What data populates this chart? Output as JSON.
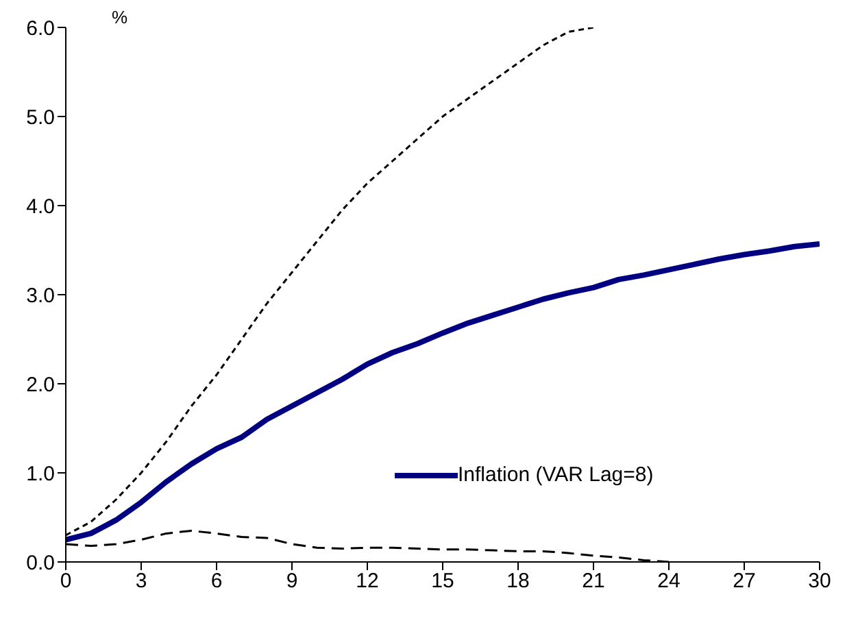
{
  "chart_data": {
    "type": "line",
    "ylabel": "%",
    "x": [
      0,
      1,
      2,
      3,
      4,
      5,
      6,
      7,
      8,
      9,
      10,
      11,
      12,
      13,
      14,
      15,
      16,
      17,
      18,
      19,
      20,
      21,
      22,
      23,
      24,
      25,
      26,
      27,
      28,
      29,
      30
    ],
    "series": [
      {
        "name": "Inflation (VAR Lag=8)",
        "color": "#000080",
        "line_style": "solid",
        "values": [
          0.25,
          0.32,
          0.47,
          0.67,
          0.9,
          1.1,
          1.27,
          1.4,
          1.6,
          1.75,
          1.9,
          2.05,
          2.22,
          2.35,
          2.45,
          2.57,
          2.68,
          2.77,
          2.86,
          2.95,
          3.02,
          3.08,
          3.17,
          3.22,
          3.28,
          3.34,
          3.4,
          3.45,
          3.49,
          3.54,
          3.57
        ]
      },
      {
        "color": "#000000",
        "line_style": "dotted",
        "values": [
          0.3,
          0.45,
          0.7,
          1.0,
          1.35,
          1.75,
          2.1,
          2.5,
          2.9,
          3.25,
          3.6,
          3.95,
          4.25,
          4.5,
          4.75,
          5.0,
          5.2,
          5.4,
          5.6,
          5.8,
          5.95,
          6.0,
          null,
          null,
          null,
          null,
          null,
          null,
          null,
          null,
          null
        ]
      },
      {
        "color": "#000000",
        "line_style": "dashed",
        "values": [
          0.2,
          0.18,
          0.2,
          0.25,
          0.32,
          0.35,
          0.32,
          0.28,
          0.27,
          0.2,
          0.16,
          0.15,
          0.16,
          0.16,
          0.15,
          0.14,
          0.14,
          0.13,
          0.12,
          0.12,
          0.1,
          0.07,
          0.05,
          0.02,
          0.0,
          null,
          null,
          null,
          null,
          null,
          null
        ]
      }
    ],
    "xlim": [
      0,
      30
    ],
    "xticks": [
      0,
      3,
      6,
      9,
      12,
      15,
      18,
      21,
      24,
      27,
      30
    ],
    "ylim": [
      0,
      6
    ],
    "yticks": [
      {
        "value": 0,
        "label": "0.0"
      },
      {
        "value": 1,
        "label": "1.0"
      },
      {
        "value": 2,
        "label": "2.0"
      },
      {
        "value": 3,
        "label": "3.0"
      },
      {
        "value": 4,
        "label": "4.0"
      },
      {
        "value": 5,
        "label": "5.0"
      },
      {
        "value": 6,
        "label": "6.0"
      }
    ],
    "grid": false,
    "legend": "right",
    "marker": "none"
  }
}
